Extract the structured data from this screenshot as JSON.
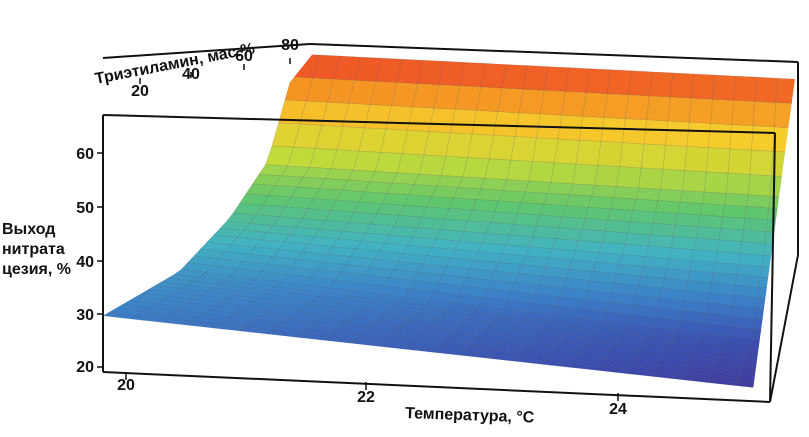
{
  "chart_data": {
    "type": "surface",
    "title": "",
    "xlabel": "Температура, °С",
    "ylabel": "Триэтиламин, мас.%",
    "zlabel_lines": [
      "Выход",
      "нитрата",
      "цезия, %"
    ],
    "x_ticks": [
      "20",
      "22",
      "24"
    ],
    "y_ticks": [
      "20",
      "40",
      "60",
      "80"
    ],
    "z_ticks": [
      "20",
      "30",
      "40",
      "50",
      "60"
    ],
    "xlim": [
      19.9,
      25.4
    ],
    "ylim": [
      10,
      87
    ],
    "zlim": [
      19,
      67
    ],
    "colormap": [
      "#4b1e86",
      "#3b4fb0",
      "#3c82c8",
      "#42b3c3",
      "#5fc66e",
      "#c2da3a",
      "#f5cc2c",
      "#f58b22",
      "#e8282a"
    ],
    "surface_samples": [
      {
        "triethylamine": 10,
        "yield_at_20C": 30.5,
        "yield_at_25C": 22.5
      },
      {
        "triethylamine": 40,
        "yield_at_20C": 33.5,
        "yield_at_25C": 24.5
      },
      {
        "triethylamine": 60,
        "yield_at_20C": 40.0,
        "yield_at_25C": 36.0
      },
      {
        "triethylamine": 75,
        "yield_at_20C": 48.0,
        "yield_at_25C": 46.0
      },
      {
        "triethylamine": 87,
        "yield_at_20C": 66.0,
        "yield_at_25C": 65.0
      }
    ]
  }
}
